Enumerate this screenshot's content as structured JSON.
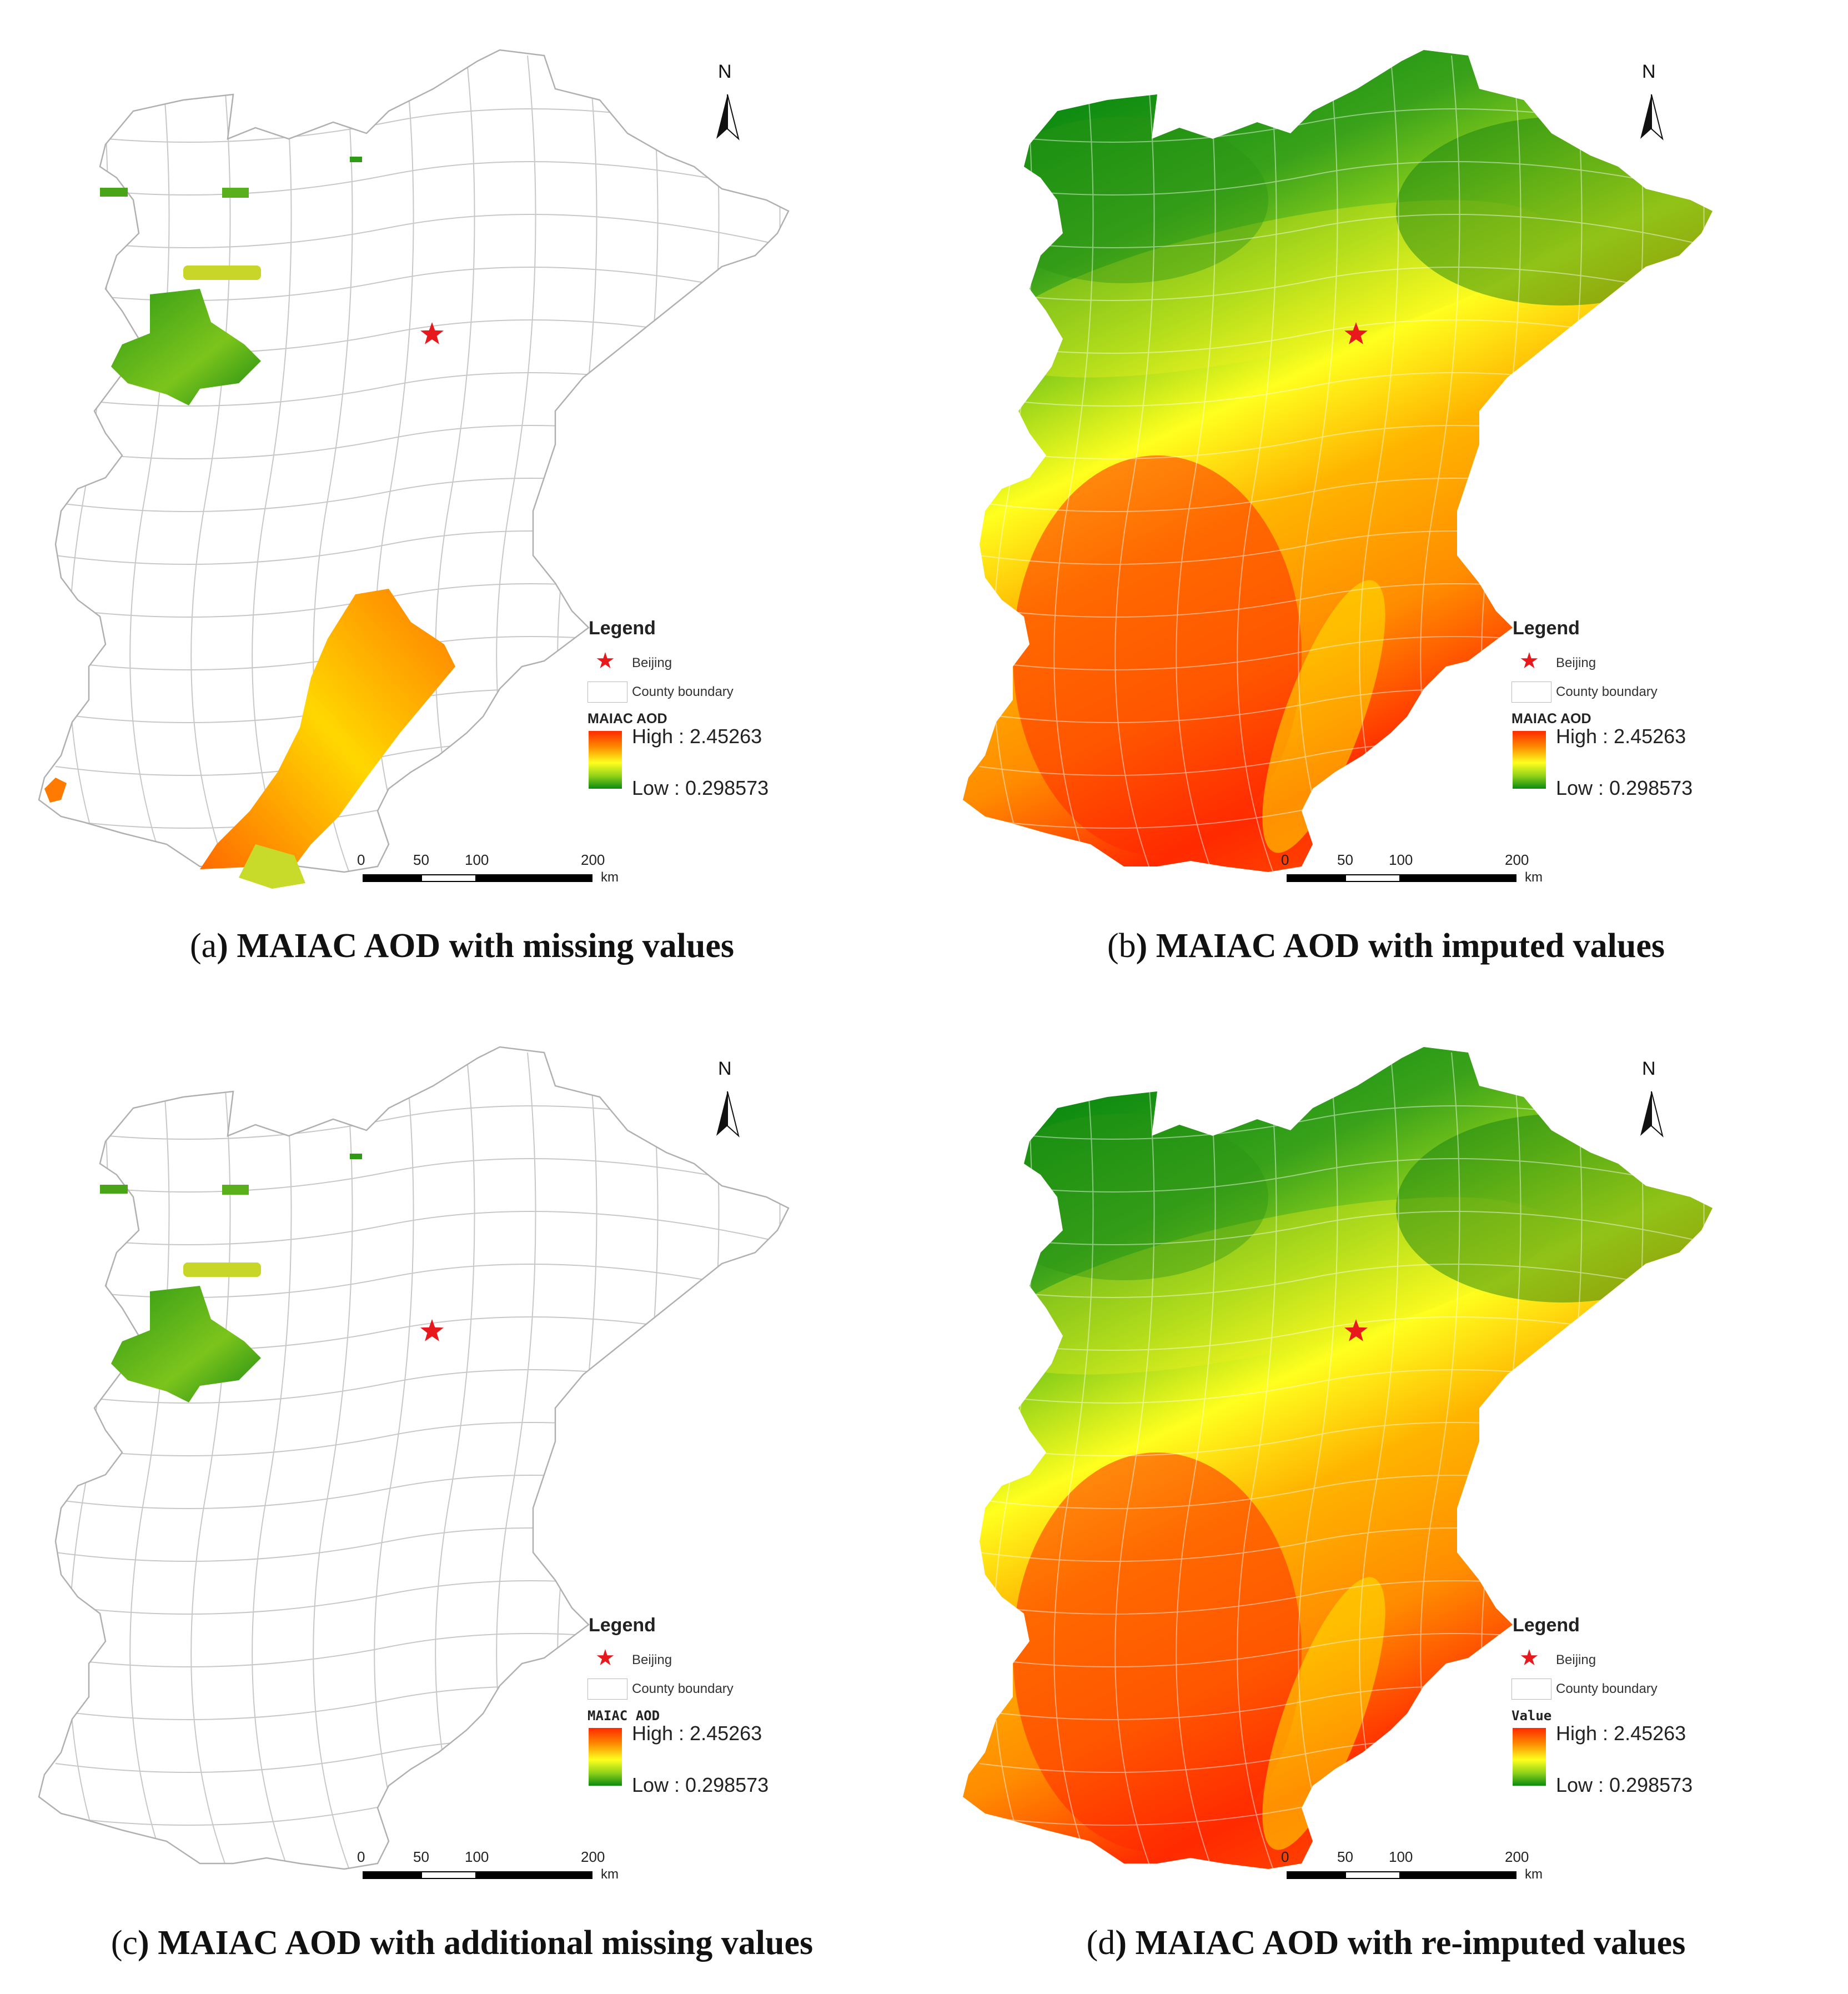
{
  "panels": [
    {
      "id": "a",
      "caption_letter": "a",
      "caption_text": "MAIAC AOD with missing values",
      "legend_title": "Legend",
      "legend_point": "Beijing",
      "legend_polygon": "County boundary",
      "ramp_title": "MAIAC AOD",
      "high_label": "High : 2.45263",
      "low_label": "Low : 0.298573",
      "scale_labels": [
        "0",
        "50",
        "100",
        "200"
      ],
      "scale_unit": "km",
      "north": "N",
      "fill": "missing"
    },
    {
      "id": "b",
      "caption_letter": "b",
      "caption_text": "MAIAC AOD with imputed values",
      "legend_title": "Legend",
      "legend_point": "Beijing",
      "legend_polygon": "County boundary",
      "ramp_title": "MAIAC AOD",
      "high_label": "High : 2.45263",
      "low_label": "Low : 0.298573",
      "scale_labels": [
        "0",
        "50",
        "100",
        "200"
      ],
      "scale_unit": "km",
      "north": "N",
      "fill": "full"
    },
    {
      "id": "c",
      "caption_letter": "c",
      "caption_text": "MAIAC AOD with additional missing values",
      "legend_title": "Legend",
      "legend_point": "Beijing",
      "legend_polygon": "County boundary",
      "ramp_title": "MAIAC AOD",
      "high_label": "High : 2.45263",
      "low_label": "Low : 0.298573",
      "scale_labels": [
        "0",
        "50",
        "100",
        "200"
      ],
      "scale_unit": "km",
      "north": "N",
      "fill": "missing-more"
    },
    {
      "id": "d",
      "caption_letter": "d",
      "caption_text": "MAIAC AOD with re-imputed values",
      "legend_title": "Legend",
      "legend_point": "Beijing",
      "legend_polygon": "County boundary",
      "ramp_title": "Value",
      "high_label": "High : 2.45263",
      "low_label": "Low : 0.298573",
      "scale_labels": [
        "0",
        "50",
        "100",
        "200"
      ],
      "scale_unit": "km",
      "north": "N",
      "fill": "full"
    }
  ],
  "colors": {
    "high": "#ff2a00",
    "mid_high": "#ff8c00",
    "mid": "#ffff1e",
    "mid_low": "#8fd11a",
    "low": "#0a8a10",
    "beijing_star": "#e8191c",
    "boundary": "#c8c8c8"
  },
  "icons": [
    "north-arrow-icon",
    "star-icon"
  ]
}
